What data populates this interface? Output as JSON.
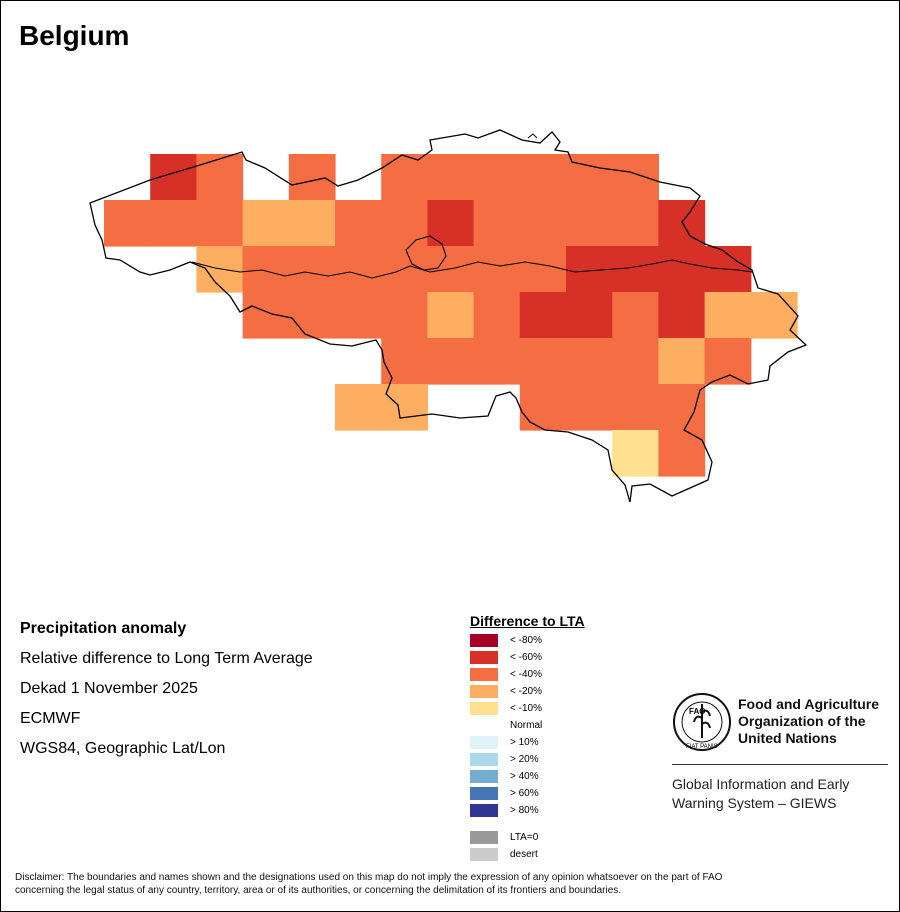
{
  "map": {
    "title": "Belgium",
    "grid_cells": [
      {
        "row": 0,
        "col": 1,
        "cls": "< -60%"
      },
      {
        "row": 0,
        "col": 2,
        "cls": "< -40%"
      },
      {
        "row": 0,
        "col": 4,
        "cls": "< -40%"
      },
      {
        "row": 0,
        "col": 6,
        "cls": "< -40%"
      },
      {
        "row": 0,
        "col": 7,
        "cls": "< -40%"
      },
      {
        "row": 0,
        "col": 8,
        "cls": "< -40%"
      },
      {
        "row": 0,
        "col": 9,
        "cls": "< -40%"
      },
      {
        "row": 0,
        "col": 10,
        "cls": "< -40%"
      },
      {
        "row": 0,
        "col": 11,
        "cls": "< -40%"
      },
      {
        "row": 1,
        "col": 0,
        "cls": "< -40%"
      },
      {
        "row": 1,
        "col": 1,
        "cls": "< -40%"
      },
      {
        "row": 1,
        "col": 2,
        "cls": "< -40%"
      },
      {
        "row": 1,
        "col": 3,
        "cls": "< -20%"
      },
      {
        "row": 1,
        "col": 4,
        "cls": "< -20%"
      },
      {
        "row": 1,
        "col": 5,
        "cls": "< -40%"
      },
      {
        "row": 1,
        "col": 6,
        "cls": "< -40%"
      },
      {
        "row": 1,
        "col": 7,
        "cls": "< -60%"
      },
      {
        "row": 1,
        "col": 8,
        "cls": "< -40%"
      },
      {
        "row": 1,
        "col": 9,
        "cls": "< -40%"
      },
      {
        "row": 1,
        "col": 10,
        "cls": "< -40%"
      },
      {
        "row": 1,
        "col": 11,
        "cls": "< -40%"
      },
      {
        "row": 1,
        "col": 12,
        "cls": "< -60%"
      },
      {
        "row": 2,
        "col": 2,
        "cls": "< -20%"
      },
      {
        "row": 2,
        "col": 3,
        "cls": "< -40%"
      },
      {
        "row": 2,
        "col": 4,
        "cls": "< -40%"
      },
      {
        "row": 2,
        "col": 5,
        "cls": "< -40%"
      },
      {
        "row": 2,
        "col": 6,
        "cls": "< -40%"
      },
      {
        "row": 2,
        "col": 7,
        "cls": "< -40%"
      },
      {
        "row": 2,
        "col": 8,
        "cls": "< -40%"
      },
      {
        "row": 2,
        "col": 9,
        "cls": "< -40%"
      },
      {
        "row": 2,
        "col": 10,
        "cls": "< -60%"
      },
      {
        "row": 2,
        "col": 11,
        "cls": "< -60%"
      },
      {
        "row": 2,
        "col": 12,
        "cls": "< -60%"
      },
      {
        "row": 2,
        "col": 13,
        "cls": "< -60%"
      },
      {
        "row": 3,
        "col": 3,
        "cls": "< -40%"
      },
      {
        "row": 3,
        "col": 4,
        "cls": "< -40%"
      },
      {
        "row": 3,
        "col": 5,
        "cls": "< -40%"
      },
      {
        "row": 3,
        "col": 6,
        "cls": "< -40%"
      },
      {
        "row": 3,
        "col": 7,
        "cls": "< -20%"
      },
      {
        "row": 3,
        "col": 8,
        "cls": "< -40%"
      },
      {
        "row": 3,
        "col": 9,
        "cls": "< -60%"
      },
      {
        "row": 3,
        "col": 10,
        "cls": "< -60%"
      },
      {
        "row": 3,
        "col": 11,
        "cls": "< -40%"
      },
      {
        "row": 3,
        "col": 12,
        "cls": "< -60%"
      },
      {
        "row": 3,
        "col": 13,
        "cls": "< -20%"
      },
      {
        "row": 3,
        "col": 14,
        "cls": "< -20%"
      },
      {
        "row": 4,
        "col": 6,
        "cls": "< -40%"
      },
      {
        "row": 4,
        "col": 7,
        "cls": "< -40%"
      },
      {
        "row": 4,
        "col": 8,
        "cls": "< -40%"
      },
      {
        "row": 4,
        "col": 9,
        "cls": "< -40%"
      },
      {
        "row": 4,
        "col": 10,
        "cls": "< -40%"
      },
      {
        "row": 4,
        "col": 11,
        "cls": "< -40%"
      },
      {
        "row": 4,
        "col": 12,
        "cls": "< -20%"
      },
      {
        "row": 4,
        "col": 13,
        "cls": "< -40%"
      },
      {
        "row": 5,
        "col": 5,
        "cls": "< -20%"
      },
      {
        "row": 5,
        "col": 6,
        "cls": "< -20%"
      },
      {
        "row": 5,
        "col": 9,
        "cls": "< -40%"
      },
      {
        "row": 5,
        "col": 10,
        "cls": "< -40%"
      },
      {
        "row": 5,
        "col": 11,
        "cls": "< -40%"
      },
      {
        "row": 5,
        "col": 12,
        "cls": "< -40%"
      },
      {
        "row": 6,
        "col": 11,
        "cls": "< -10%"
      },
      {
        "row": 6,
        "col": 12,
        "cls": "< -40%"
      }
    ]
  },
  "info": {
    "heading": "Precipitation anomaly",
    "line1": "Relative difference to Long Term Average",
    "line2": "Dekad 1 November 2025",
    "line3": "ECMWF",
    "line4": "WGS84, Geographic Lat/Lon"
  },
  "legend": {
    "title": "Difference to LTA",
    "items": [
      {
        "label": "< -80%",
        "color": "#a50026"
      },
      {
        "label": "< -60%",
        "color": "#d73027"
      },
      {
        "label": "< -40%",
        "color": "#f46d43"
      },
      {
        "label": "< -20%",
        "color": "#fdae61"
      },
      {
        "label": "< -10%",
        "color": "#fee090"
      },
      {
        "label": "Normal",
        "color": "#ffffff"
      },
      {
        "label": "> 10%",
        "color": "#e0f3f8"
      },
      {
        "label": "> 20%",
        "color": "#abd9e9"
      },
      {
        "label": "> 40%",
        "color": "#74add1"
      },
      {
        "label": "> 60%",
        "color": "#4575b4"
      },
      {
        "label": "> 80%",
        "color": "#313695"
      },
      {
        "label": "LTA=0",
        "color": "#999999"
      },
      {
        "label": "desert",
        "color": "#cccccc"
      }
    ]
  },
  "fao": {
    "logo_text": "FAO",
    "motto": "FIAT PANIS",
    "name_line1": "Food and Agriculture",
    "name_line2": "Organization of the",
    "name_line3": "United Nations",
    "giews_line1": "Global Information and Early",
    "giews_line2": "Warning System – GIEWS"
  },
  "disclaimer": {
    "line1": "Disclaimer: The boundaries and names shown and the designations used on this map do not imply the expression of any opinion whatsoever on the part of FAO",
    "line2": "concerning the legal status of any country, territory, area or of its authorities, or concerning the delimitation of its frontiers and boundaries."
  }
}
